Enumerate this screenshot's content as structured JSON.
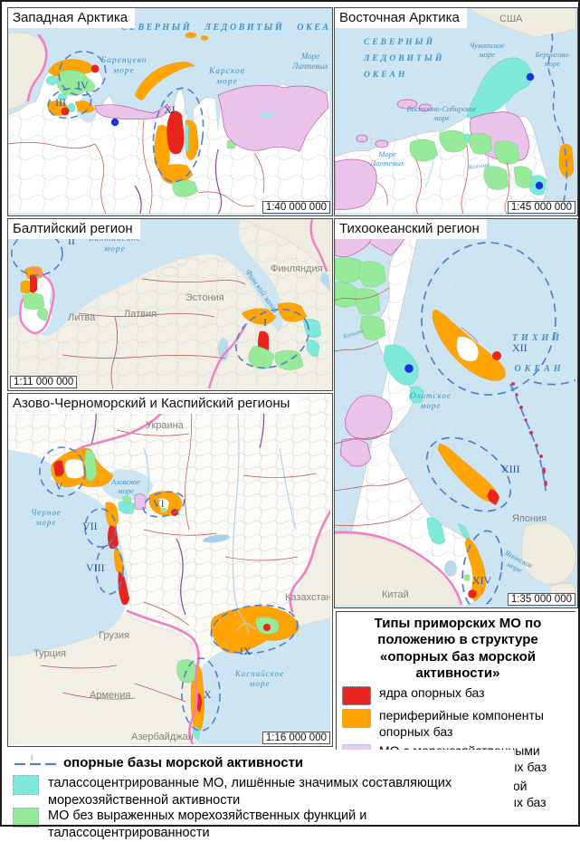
{
  "colors": {
    "core_red": "#e8241f",
    "peripheral_orange": "#ffa403",
    "mo_outside_violet": "#e9c3ea",
    "support_point_blue": "#1733e3",
    "thalasso_cyan": "#7fe9da",
    "no_marine_green": "#98ea9b",
    "sea": "#cde5f2",
    "foreign_land": "#f0ecdf",
    "support_base_ellipse": "#4f7fd0",
    "russia_border_pink": "#ef7fc2",
    "region_border": "#b5534b",
    "sea_label": "#4590c5"
  },
  "panels": {
    "west_arctic": {
      "title": "Западная Арктика",
      "scale": "1:40 000 000",
      "ocean": "СЕВЕРНЫЙ ЛЕДОВИТЫЙ ОКЕАН",
      "sea_barents": "Баренцево\nморе",
      "sea_kara": "Карское\nморе",
      "sea_laptev": "Море\nЛаптевых",
      "num_iii": "III",
      "num_iv": "IV",
      "num_xi": "XI"
    },
    "east_arctic": {
      "title": "Восточная Арктика",
      "scale": "1:45 000 000",
      "ocean": "СЕВЕРНЫЙ\nЛЕДОВИТЫЙ\nОКЕАН",
      "sea_chukchi": "Чукотское\nморе",
      "sea_bering": "Берингово\nморе",
      "sea_east_siberian": "Восточно-Сибирское\nморе",
      "sea_laptev": "Море\nЛаптевых",
      "country_usa": "США",
      "river_kolyma": "Колыма"
    },
    "baltic": {
      "title": "Балтийский регион",
      "scale": "1:11 000 000",
      "sea_baltic": "Балтийское\nморе",
      "gulf_finland": "Финский залив",
      "country_finland": "Финляндия",
      "country_estonia": "Эстония",
      "country_latvia": "Латвия",
      "country_lithuania": "Литва",
      "num_i": "I",
      "num_ii": "II"
    },
    "pacific": {
      "title": "Тихоокеанский регион",
      "scale": "1:35 000 000",
      "ocean_1": "ТИХИЙ",
      "ocean_2": "ОКЕАН",
      "sea_okhotsk": "Охотское\nморе",
      "sea_japan": "Японское\nморе",
      "country_japan": "Япония",
      "country_china": "Китай",
      "river_kolyma": "Колыма",
      "num_xii": "XII",
      "num_xiii": "XIII",
      "num_xiv": "XIV"
    },
    "azov_caspian": {
      "title": "Азово-Черноморский и Каспийский регионы",
      "scale": "1:16 000 000",
      "sea_black": "Черное\nморе",
      "sea_azov": "Азовское\nморе",
      "sea_caspian": "Каспийское\nморе",
      "country_ukraine": "Украина",
      "country_kazakhstan": "Казахстан",
      "country_georgia": "Грузия",
      "country_turkey": "Турция",
      "country_armenia": "Армения",
      "country_azerbaijan": "Азербайджан",
      "num_v": "V",
      "num_vi": "VI",
      "num_vii": "VII",
      "num_viii": "VIII",
      "num_ix": "IX",
      "num_x": "X"
    }
  },
  "legend": {
    "title": "Типы приморских МО по положению в структуре «опорных баз морской активности»",
    "items": [
      {
        "label": "ядра опорных баз",
        "color": "#e8241f"
      },
      {
        "label": "периферийные компоненты опорных баз",
        "color": "#ffa403"
      },
      {
        "label": "МО с морехозяйственными функциями вне опорных баз",
        "color": "#efc9f0"
      },
      {
        "label": "опорные пункты морской активности вне опорных баз",
        "color": "#1733e3"
      }
    ],
    "support_bases_label": "опорные базы морской активности",
    "support_bases_marker": "I",
    "thalasso_label": "талассоцентрированные МО, лишённые значимых составляющих морехозяйственной активности",
    "no_marine_label": "МО без выраженных морехозяйственных функций и талассоцентрированности"
  }
}
